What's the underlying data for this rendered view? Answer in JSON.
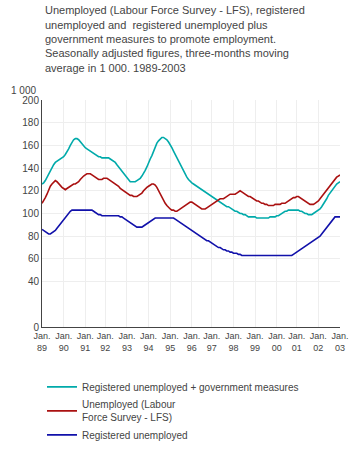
{
  "chart_data": {
    "type": "line",
    "title": "Unemployed (Labour Force Survey - LFS), registered\nunemployed and  registered unemployed plus\ngovernment measures to promote employment.\nSeasonally adjusted figures, three-months moving\naverage in 1 000. 1989-2003",
    "ylabel": "1 000",
    "ylim": [
      0,
      200
    ],
    "yticks": [
      0,
      40,
      60,
      80,
      100,
      120,
      140,
      160,
      180,
      200
    ],
    "grid": true,
    "legend": "bottom",
    "categories": [
      "Jan.\n89",
      null,
      null,
      null,
      null,
      null,
      null,
      null,
      null,
      null,
      null,
      null,
      null,
      "Jan.\n90",
      null,
      null,
      null,
      null,
      null,
      null,
      null,
      null,
      null,
      null,
      null,
      null,
      "Jan.\n91",
      null,
      null,
      null,
      null,
      null,
      null,
      null,
      null,
      null,
      null,
      null,
      "Jan.\n92",
      null,
      null,
      null,
      null,
      null,
      null,
      null,
      null,
      null,
      null,
      null,
      null,
      "Jan.\n93",
      null,
      null,
      null,
      null,
      null,
      null,
      null,
      null,
      null,
      null,
      null,
      null,
      "Jan.\n94",
      null,
      null,
      null,
      null,
      null,
      null,
      null,
      null,
      null,
      null,
      null,
      null,
      "Jan.\n95",
      null,
      null,
      null,
      null,
      null,
      null,
      null,
      null,
      null,
      null,
      null,
      null,
      "Jan.\n96",
      null,
      null,
      null,
      null,
      null,
      null,
      null,
      null,
      null,
      null,
      null,
      "Jan.\n97",
      null,
      null,
      null,
      null,
      null,
      null,
      null,
      null,
      null,
      null,
      null,
      null,
      "Jan.\n98",
      null,
      null,
      null,
      null,
      null,
      null,
      null,
      null,
      null,
      null,
      null,
      null,
      "Jan.\n99",
      null,
      null,
      null,
      null,
      null,
      null,
      null,
      null,
      null,
      null,
      null,
      null,
      "Jan.\n00",
      null,
      null,
      null,
      null,
      null,
      null,
      null,
      null,
      null,
      null,
      null,
      "Jan.\n01",
      null,
      null,
      null,
      null,
      null,
      null,
      null,
      null,
      null,
      null,
      null,
      null,
      "Jan.\n02",
      null,
      null,
      null,
      null,
      null,
      null,
      null,
      null,
      null,
      null,
      null,
      null,
      "Jan.\n03"
    ],
    "series": [
      {
        "name": "Registered unemployed + government measures",
        "color": "#00aaaa",
        "values": [
          126,
          127,
          129,
          132,
          135,
          138,
          141,
          143,
          145,
          146,
          147,
          148,
          149,
          150,
          152,
          154,
          157,
          160,
          163,
          165,
          166,
          166,
          165,
          163,
          161,
          160,
          158,
          157,
          156,
          155,
          154,
          153,
          152,
          151,
          150,
          150,
          149,
          149,
          149,
          149,
          149,
          148,
          147,
          146,
          145,
          143,
          141,
          139,
          137,
          135,
          133,
          131,
          129,
          128,
          128,
          128,
          128,
          129,
          130,
          131,
          133,
          135,
          138,
          141,
          145,
          148,
          151,
          155,
          159,
          162,
          164,
          166,
          167,
          167,
          166,
          165,
          163,
          161,
          158,
          155,
          152,
          149,
          146,
          143,
          140,
          137,
          135,
          132,
          130,
          128,
          127,
          126,
          125,
          124,
          123,
          122,
          121,
          120,
          119,
          118,
          117,
          116,
          115,
          114,
          113,
          112,
          111,
          110,
          109,
          108,
          107,
          106,
          106,
          105,
          104,
          103,
          102,
          102,
          101,
          100,
          100,
          99,
          99,
          98,
          97,
          97,
          97,
          97,
          97,
          96,
          96,
          96,
          96,
          96,
          96,
          96,
          96,
          97,
          97,
          97,
          97,
          98,
          98,
          99,
          100,
          101,
          102,
          102,
          103,
          103,
          103,
          103,
          103,
          103,
          103,
          102,
          102,
          101,
          100,
          100,
          99,
          99,
          99,
          100,
          101,
          102,
          103,
          104,
          106,
          108,
          110,
          113,
          116,
          118,
          121,
          123,
          125,
          126,
          127,
          128
        ]
      },
      {
        "name": "Unemployed (Labour\nForce Survey - LFS)",
        "color": "#aa1111",
        "values": [
          109,
          111,
          114,
          117,
          121,
          124,
          126,
          128,
          129,
          128,
          126,
          124,
          123,
          122,
          121,
          122,
          123,
          124,
          125,
          126,
          126,
          127,
          128,
          130,
          132,
          133,
          134,
          135,
          135,
          135,
          134,
          133,
          132,
          131,
          130,
          130,
          130,
          131,
          131,
          131,
          130,
          129,
          128,
          127,
          126,
          125,
          124,
          122,
          121,
          120,
          119,
          118,
          117,
          116,
          116,
          115,
          115,
          115,
          116,
          117,
          118,
          120,
          122,
          123,
          124,
          125,
          126,
          126,
          125,
          123,
          120,
          117,
          114,
          112,
          109,
          107,
          105,
          104,
          103,
          103,
          102,
          102,
          103,
          104,
          105,
          106,
          107,
          108,
          109,
          110,
          110,
          109,
          108,
          107,
          106,
          105,
          104,
          104,
          104,
          105,
          106,
          107,
          108,
          109,
          110,
          111,
          112,
          113,
          113,
          113,
          114,
          115,
          116,
          117,
          117,
          117,
          117,
          118,
          119,
          120,
          119,
          118,
          117,
          116,
          115,
          115,
          114,
          113,
          112,
          111,
          111,
          110,
          109,
          109,
          108,
          108,
          107,
          107,
          107,
          107,
          108,
          108,
          108,
          108,
          109,
          109,
          109,
          110,
          111,
          112,
          113,
          114,
          114,
          115,
          115,
          114,
          113,
          112,
          111,
          110,
          109,
          108,
          108,
          108,
          109,
          110,
          111,
          113,
          115,
          117,
          119,
          121,
          123,
          125,
          127,
          129,
          131,
          132,
          133,
          134
        ]
      },
      {
        "name": "Registered unemployed",
        "color": "#1111aa",
        "values": [
          86,
          85,
          84,
          83,
          82,
          82,
          83,
          84,
          85,
          87,
          89,
          91,
          93,
          95,
          97,
          99,
          101,
          102,
          103,
          103,
          103,
          103,
          103,
          103,
          103,
          103,
          103,
          103,
          103,
          103,
          103,
          102,
          101,
          100,
          99,
          99,
          98,
          98,
          98,
          98,
          98,
          98,
          98,
          98,
          98,
          98,
          98,
          97,
          97,
          96,
          95,
          94,
          93,
          92,
          91,
          90,
          89,
          88,
          88,
          88,
          88,
          89,
          90,
          91,
          92,
          93,
          94,
          95,
          96,
          96,
          96,
          96,
          96,
          96,
          96,
          96,
          96,
          96,
          96,
          96,
          95,
          94,
          93,
          92,
          91,
          90,
          89,
          88,
          87,
          86,
          85,
          84,
          83,
          82,
          81,
          80,
          79,
          78,
          77,
          76,
          76,
          75,
          74,
          73,
          72,
          71,
          70,
          70,
          69,
          68,
          68,
          67,
          67,
          66,
          66,
          65,
          65,
          65,
          64,
          64,
          63,
          63,
          63,
          63,
          63,
          63,
          63,
          63,
          63,
          63,
          63,
          63,
          63,
          63,
          63,
          63,
          63,
          63,
          63,
          63,
          63,
          63,
          63,
          63,
          63,
          63,
          63,
          63,
          63,
          63,
          63,
          64,
          65,
          66,
          67,
          68,
          69,
          70,
          71,
          72,
          73,
          74,
          75,
          76,
          77,
          78,
          79,
          80,
          82,
          84,
          86,
          88,
          90,
          92,
          94,
          96,
          97,
          97,
          97,
          97
        ]
      }
    ]
  }
}
